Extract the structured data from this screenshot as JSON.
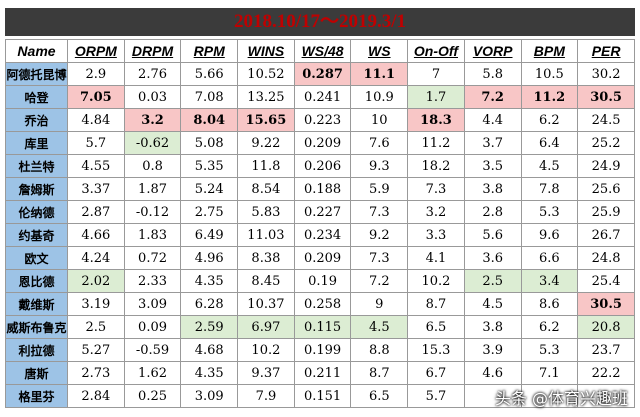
{
  "header": {
    "title": "2018.10/17～2019.3/1"
  },
  "table": {
    "columns": [
      "Name",
      "ORPM",
      "DRPM",
      "RPM",
      "WINS",
      "WS/48",
      "WS",
      "On-Off",
      "VORP",
      "BPM",
      "PER"
    ],
    "rows": [
      [
        "阿德托昆博",
        2.9,
        2.76,
        5.66,
        10.52,
        0.287,
        11.1,
        7,
        5.8,
        10.5,
        30.2
      ],
      [
        "哈登",
        7.05,
        0.03,
        7.08,
        13.25,
        0.241,
        10.9,
        1.7,
        7.2,
        11.2,
        30.5
      ],
      [
        "乔治",
        4.84,
        3.2,
        8.04,
        15.65,
        0.223,
        10,
        18.3,
        4.4,
        6.2,
        24.5
      ],
      [
        "库里",
        5.7,
        -0.62,
        5.08,
        9.22,
        0.209,
        7.6,
        11.2,
        3.7,
        6.4,
        25.2
      ],
      [
        "杜兰特",
        4.55,
        0.8,
        5.35,
        11.8,
        0.206,
        9.3,
        18.2,
        3.5,
        4.5,
        24.9
      ],
      [
        "詹姆斯",
        3.37,
        1.87,
        5.24,
        8.54,
        0.188,
        5.9,
        7.3,
        3.8,
        7.8,
        25.6
      ],
      [
        "伦纳德",
        2.87,
        -0.12,
        2.75,
        5.83,
        0.227,
        7.3,
        3.2,
        2.8,
        5.3,
        25.9
      ],
      [
        "约基奇",
        4.66,
        1.83,
        6.49,
        11.03,
        0.234,
        9.2,
        3.3,
        5.6,
        9.6,
        26.7
      ],
      [
        "欧文",
        4.24,
        0.72,
        4.96,
        8.38,
        0.209,
        7.3,
        4.1,
        3.6,
        6.6,
        24.8
      ],
      [
        "恩比德",
        2.02,
        2.33,
        4.35,
        8.45,
        0.19,
        7.2,
        10.2,
        2.5,
        3.4,
        25.4
      ],
      [
        "戴维斯",
        3.19,
        3.09,
        6.28,
        10.37,
        0.258,
        9,
        8.7,
        4.5,
        8.6,
        30.5
      ],
      [
        "威斯布鲁克",
        2.5,
        0.09,
        2.59,
        6.97,
        0.115,
        4.5,
        6.5,
        3.8,
        6.2,
        20.8
      ],
      [
        "利拉德",
        5.27,
        -0.59,
        4.68,
        10.2,
        0.199,
        8.8,
        15.3,
        3.9,
        5.3,
        23.7
      ],
      [
        "唐斯",
        2.73,
        1.62,
        4.35,
        9.37,
        0.211,
        8.7,
        6.7,
        4.6,
        7.1,
        22.2
      ],
      [
        "格里芬",
        2.84,
        0.25,
        3.09,
        7.9,
        0.151,
        6.5,
        5.7,
        null,
        null,
        null
      ]
    ]
  },
  "watermark": "头条 @体育兴趣班"
}
